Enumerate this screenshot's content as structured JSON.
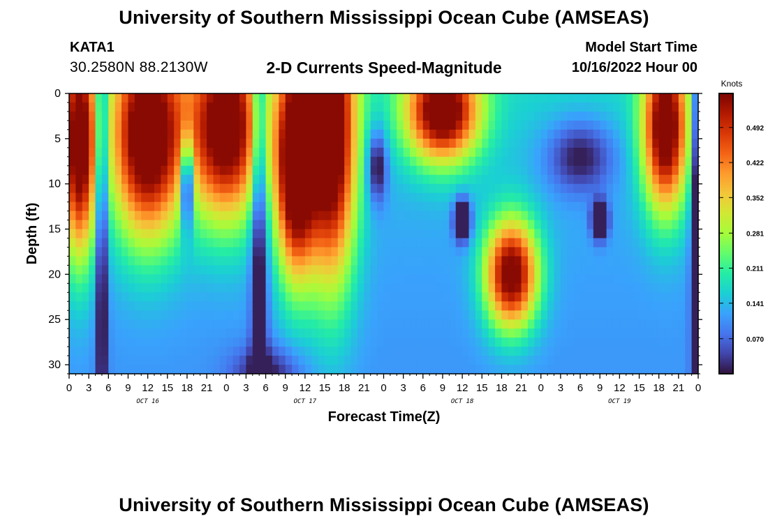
{
  "header": {
    "title": "University of Southern Mississippi Ocean Cube (AMSEAS)",
    "station_id": "KATA1",
    "coordinates": "30.2580N  88.2130W",
    "subtitle": "2-D Currents Speed-Magnitude",
    "model_start_label": "Model Start Time",
    "model_start_value": "10/16/2022 Hour 00"
  },
  "footer": {
    "title": "University of Southern Mississippi Ocean Cube (AMSEAS)"
  },
  "chart_data": {
    "type": "heatmap",
    "title": "2-D Currents Speed-Magnitude",
    "xlabel": "Forecast Time(Z)",
    "ylabel": "Depth (ft)",
    "x_range_hours": [
      0,
      96
    ],
    "ylim": [
      0,
      31
    ],
    "y_ticks": [
      "0",
      "5",
      "10",
      "15",
      "20",
      "25",
      "30"
    ],
    "x_tick_labels": [
      "0",
      "3",
      "6",
      "9",
      "12",
      "15",
      "18",
      "21",
      "0",
      "3",
      "6",
      "9",
      "12",
      "15",
      "18",
      "21",
      "0",
      "3",
      "6",
      "9",
      "12",
      "15",
      "18",
      "21",
      "0",
      "3",
      "6",
      "9",
      "12",
      "15",
      "18",
      "21",
      "0"
    ],
    "day_labels": [
      "OCT 16",
      "OCT 17",
      "OCT 18",
      "OCT 19"
    ],
    "colorbar": {
      "unit": "Knots",
      "ticks": [
        "0.492",
        "0.422",
        "0.352",
        "0.281",
        "0.211",
        "0.141",
        "0.070"
      ],
      "range": [
        0,
        0.56
      ],
      "colors": [
        "#30123b",
        "#4145ab",
        "#4675ed",
        "#39a2fc",
        "#1bcfd4",
        "#24eca6",
        "#61fc6c",
        "#a4fc3b",
        "#d1e834",
        "#f3c63a",
        "#fe9b2d",
        "#f36315",
        "#d93806",
        "#b11901",
        "#7a0402"
      ]
    },
    "description_points": [
      {
        "hours": [
          0,
          4
        ],
        "depth_ft": [
          0,
          18
        ],
        "level": "high"
      },
      {
        "hours": [
          17,
          19
        ],
        "depth_ft": [
          5,
          15
        ],
        "level": "low"
      },
      {
        "hours": [
          36,
          40
        ],
        "depth_ft": [
          0,
          22
        ],
        "level": "high"
      },
      {
        "hours": [
          54,
          60
        ],
        "depth_ft": [
          0,
          8
        ],
        "level": "high"
      },
      {
        "hours": [
          64,
          72
        ],
        "depth_ft": [
          14,
          28
        ],
        "level": "high"
      },
      {
        "hours": [
          88,
          94
        ],
        "depth_ft": [
          0,
          14
        ],
        "level": "high"
      }
    ]
  }
}
